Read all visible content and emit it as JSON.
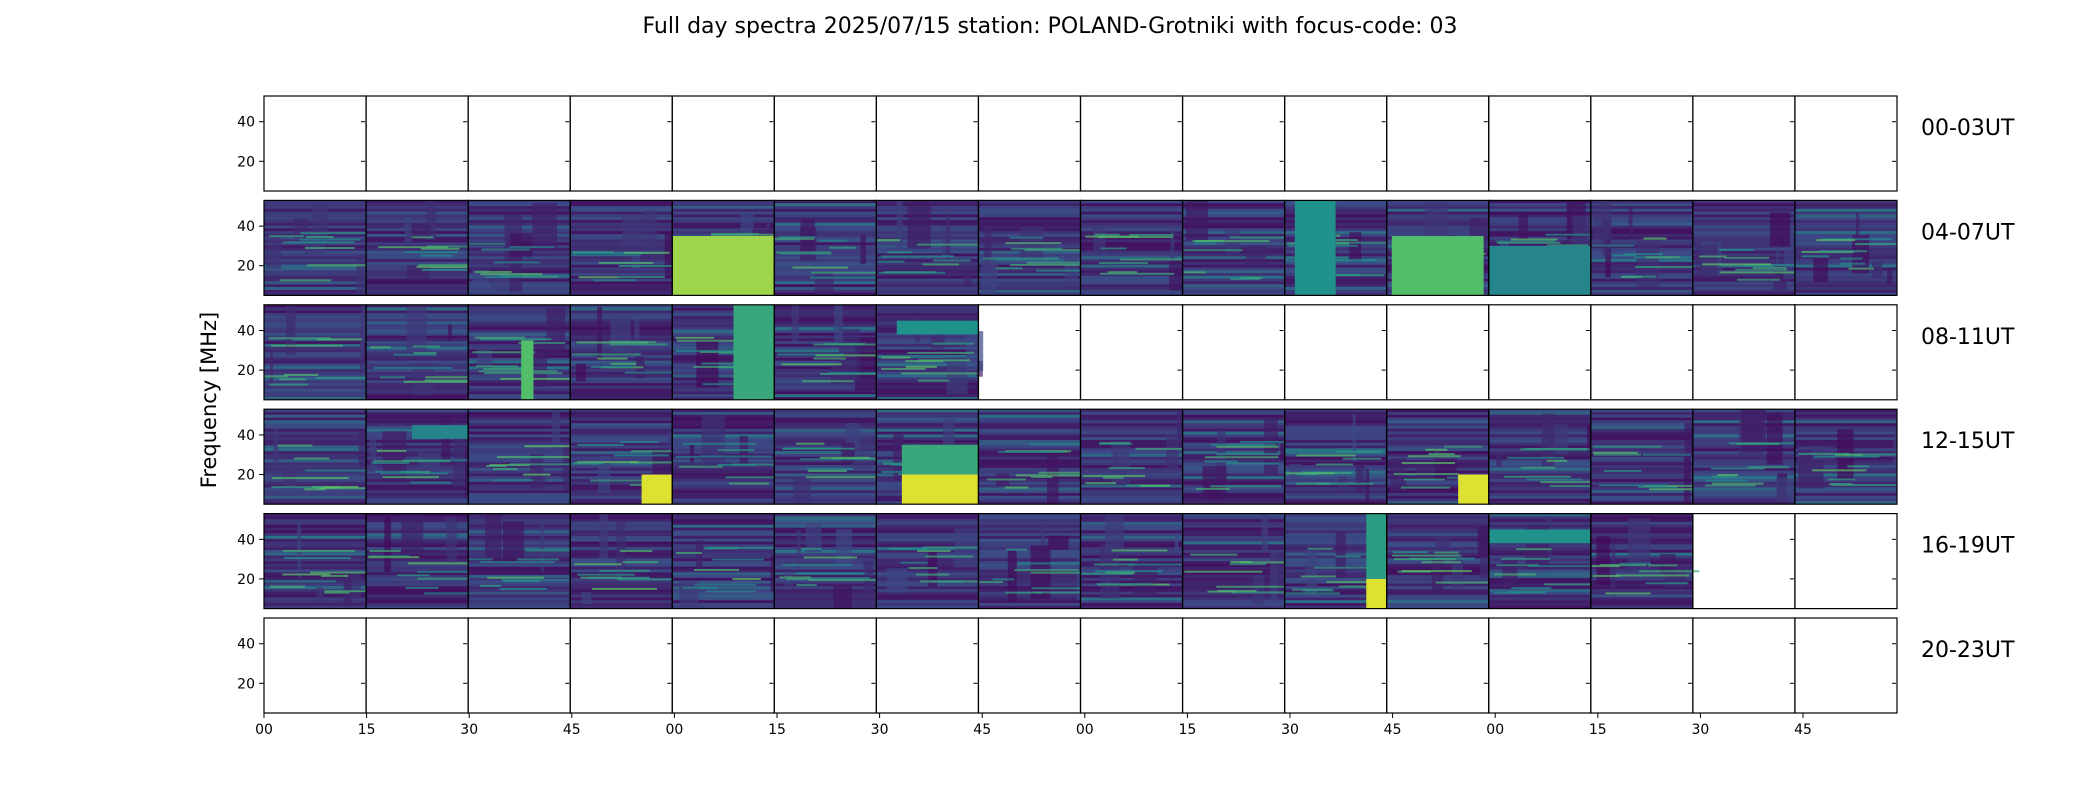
{
  "chart_data": {
    "type": "heatmap",
    "title": "Full day spectra 2025/07/15 station: POLAND-Grotniki with focus-code: 03",
    "ylabel": "Frequency [MHz]",
    "yticks": [
      "20",
      "40"
    ],
    "ylim": [
      5,
      53
    ],
    "xticks": [
      "00",
      "15",
      "30",
      "45",
      "00",
      "15",
      "30",
      "45",
      "00",
      "15",
      "30",
      "45",
      "00",
      "15",
      "30",
      "45"
    ],
    "colormap": "viridis",
    "colors": {
      "low": "#440154",
      "mid": "#21918c",
      "high": "#fde725"
    },
    "rows": [
      {
        "label": "00-03UT",
        "has_data": [
          0,
          0,
          0,
          0,
          0,
          0,
          0,
          0,
          0,
          0,
          0,
          0,
          0,
          0,
          0,
          0
        ],
        "bursts": []
      },
      {
        "label": "04-07UT",
        "has_data": [
          1,
          1,
          1,
          1,
          1,
          1,
          1,
          1,
          1,
          1,
          1,
          1,
          1,
          1,
          1,
          1
        ],
        "bursts": [
          {
            "panel": 4,
            "start": 0.0,
            "end": 1.0,
            "fmin": 5,
            "fmax": 35,
            "level": 0.85
          },
          {
            "panel": 11,
            "start": 0.05,
            "end": 0.95,
            "fmin": 5,
            "fmax": 35,
            "level": 0.7
          },
          {
            "panel": 10,
            "start": 0.1,
            "end": 0.5,
            "fmin": 5,
            "fmax": 53,
            "level": 0.5
          },
          {
            "panel": 12,
            "start": 0.0,
            "end": 1.0,
            "fmin": 5,
            "fmax": 30,
            "level": 0.45
          }
        ]
      },
      {
        "label": "08-11UT",
        "has_data": [
          1,
          1,
          1,
          1,
          1,
          1,
          1,
          0,
          0,
          0,
          0,
          0,
          0,
          0,
          0,
          0
        ],
        "bursts": [
          {
            "panel": 2,
            "start": 0.52,
            "end": 0.64,
            "fmin": 5,
            "fmax": 35,
            "level": 0.7
          },
          {
            "panel": 4,
            "start": 0.6,
            "end": 1.0,
            "fmin": 5,
            "fmax": 53,
            "level": 0.6
          },
          {
            "panel": 6,
            "start": 0.2,
            "end": 1.0,
            "fmin": 38,
            "fmax": 45,
            "level": 0.5
          }
        ]
      },
      {
        "label": "12-15UT",
        "has_data": [
          1,
          1,
          1,
          1,
          1,
          1,
          1,
          1,
          1,
          1,
          1,
          1,
          1,
          1,
          1,
          1
        ],
        "bursts": [
          {
            "panel": 1,
            "start": 0.45,
            "end": 1.0,
            "fmin": 38,
            "fmax": 45,
            "level": 0.45
          },
          {
            "panel": 3,
            "start": 0.7,
            "end": 1.0,
            "fmin": 5,
            "fmax": 20,
            "level": 0.95
          },
          {
            "panel": 6,
            "start": 0.25,
            "end": 1.0,
            "fmin": 5,
            "fmax": 20,
            "level": 0.95
          },
          {
            "panel": 6,
            "start": 0.25,
            "end": 1.0,
            "fmin": 20,
            "fmax": 35,
            "level": 0.6
          },
          {
            "panel": 11,
            "start": 0.7,
            "end": 1.0,
            "fmin": 5,
            "fmax": 20,
            "level": 0.95
          }
        ]
      },
      {
        "label": "16-19UT",
        "has_data": [
          1,
          1,
          1,
          1,
          1,
          1,
          1,
          1,
          1,
          1,
          1,
          1,
          1,
          1,
          0,
          0
        ],
        "bursts": [
          {
            "panel": 10,
            "start": 0.8,
            "end": 1.0,
            "fmin": 5,
            "fmax": 20,
            "level": 0.95
          },
          {
            "panel": 10,
            "start": 0.8,
            "end": 1.0,
            "fmin": 20,
            "fmax": 53,
            "level": 0.55
          },
          {
            "panel": 12,
            "start": 0.0,
            "end": 1.0,
            "fmin": 38,
            "fmax": 45,
            "level": 0.5
          }
        ]
      },
      {
        "label": "20-23UT",
        "has_data": [
          0,
          0,
          0,
          0,
          0,
          0,
          0,
          0,
          0,
          0,
          0,
          0,
          0,
          0,
          0,
          0
        ],
        "bursts": []
      }
    ]
  }
}
